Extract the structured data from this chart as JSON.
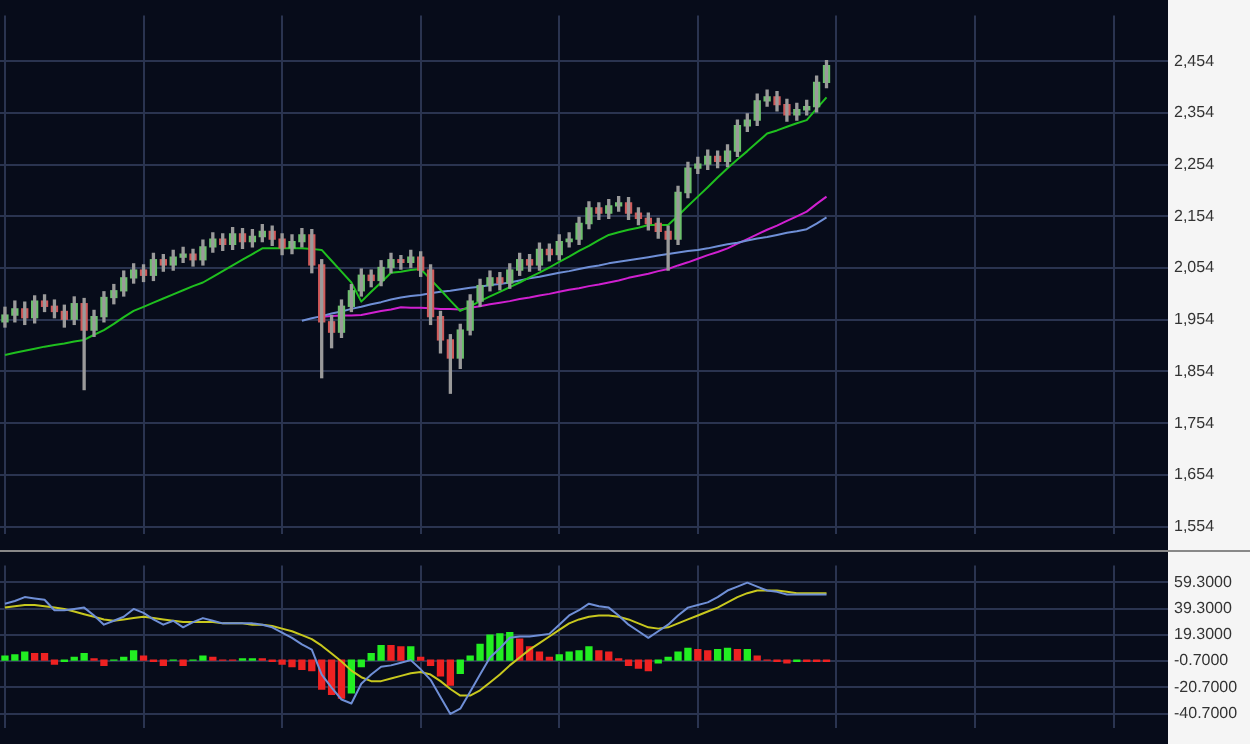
{
  "chart_data": [
    {
      "type": "candlestick",
      "categories": [
        null,
        null,
        null,
        null,
        null,
        null,
        null,
        null,
        null,
        null,
        null,
        null,
        null,
        null,
        null,
        null,
        null,
        null,
        null,
        null,
        null,
        null,
        null,
        null,
        null,
        null,
        null,
        null,
        null,
        null,
        null,
        null,
        null,
        null,
        null,
        null,
        null,
        null,
        null,
        null,
        null,
        null,
        null,
        null,
        null,
        null,
        null,
        null,
        null,
        null,
        null,
        null,
        null,
        null,
        null,
        null,
        null,
        null,
        null,
        null,
        null,
        null,
        null,
        null,
        null,
        null,
        null,
        null,
        null,
        null,
        null,
        null,
        null,
        null,
        null,
        null,
        null,
        null,
        null,
        null,
        null,
        null,
        null,
        null,
        null,
        null,
        null,
        null,
        null,
        null,
        null,
        null,
        null,
        null,
        null,
        null,
        null,
        null,
        null,
        null,
        null,
        null,
        null,
        null,
        null,
        null,
        null,
        null,
        null,
        null,
        null,
        null,
        null,
        null,
        null,
        null,
        null,
        null
      ],
      "ohlc": [
        [
          1950,
          1978,
          1940,
          1963
        ],
        [
          1963,
          1990,
          1950,
          1975
        ],
        [
          1975,
          1988,
          1945,
          1958
        ],
        [
          1958,
          2000,
          1948,
          1990
        ],
        [
          1990,
          2002,
          1970,
          1980
        ],
        [
          1980,
          1992,
          1958,
          1970
        ],
        [
          1970,
          1982,
          1940,
          1955
        ],
        [
          1955,
          1998,
          1945,
          1985
        ],
        [
          1985,
          1995,
          1819,
          1934
        ],
        [
          1934,
          1972,
          1922,
          1960
        ],
        [
          1960,
          2008,
          1950,
          1997
        ],
        [
          1997,
          2022,
          1985,
          2010
        ],
        [
          2010,
          2048,
          2000,
          2035
        ],
        [
          2035,
          2062,
          2025,
          2050
        ],
        [
          2050,
          2060,
          2028,
          2040
        ],
        [
          2040,
          2082,
          2030,
          2070
        ],
        [
          2070,
          2080,
          2048,
          2060
        ],
        [
          2060,
          2088,
          2050,
          2075
        ],
        [
          2075,
          2094,
          2065,
          2081
        ],
        [
          2081,
          2090,
          2058,
          2070
        ],
        [
          2070,
          2108,
          2060,
          2095
        ],
        [
          2095,
          2122,
          2085,
          2110
        ],
        [
          2110,
          2120,
          2088,
          2100
        ],
        [
          2100,
          2132,
          2090,
          2120
        ],
        [
          2120,
          2130,
          2092,
          2105
        ],
        [
          2105,
          2128,
          2095,
          2115
        ],
        [
          2115,
          2138,
          2105,
          2125
        ],
        [
          2125,
          2135,
          2098,
          2110
        ],
        [
          2110,
          2120,
          2080,
          2093
        ],
        [
          2093,
          2118,
          2082,
          2105
        ],
        [
          2105,
          2130,
          2095,
          2118
        ],
        [
          2118,
          2128,
          2045,
          2060
        ],
        [
          2060,
          2070,
          1842,
          1950
        ],
        [
          1950,
          1962,
          1900,
          1930
        ],
        [
          1930,
          1992,
          1920,
          1980
        ],
        [
          1980,
          2022,
          1970,
          2010
        ],
        [
          2010,
          2052,
          2000,
          2040
        ],
        [
          2040,
          2050,
          2018,
          2030
        ],
        [
          2030,
          2068,
          2020,
          2055
        ],
        [
          2055,
          2082,
          2045,
          2070
        ],
        [
          2070,
          2078,
          2052,
          2065
        ],
        [
          2065,
          2088,
          2055,
          2075
        ],
        [
          2075,
          2085,
          2038,
          2050
        ],
        [
          2050,
          2060,
          1945,
          1960
        ],
        [
          1960,
          1970,
          1890,
          1915
        ],
        [
          1915,
          1925,
          1812,
          1880
        ],
        [
          1880,
          1945,
          1860,
          1934
        ],
        [
          1934,
          2002,
          1925,
          1990
        ],
        [
          1990,
          2032,
          1980,
          2020
        ],
        [
          2020,
          2048,
          2010,
          2035
        ],
        [
          2035,
          2045,
          2012,
          2025
        ],
        [
          2025,
          2062,
          2015,
          2050
        ],
        [
          2050,
          2082,
          2040,
          2070
        ],
        [
          2070,
          2080,
          2048,
          2060
        ],
        [
          2060,
          2102,
          2050,
          2090
        ],
        [
          2090,
          2100,
          2068,
          2080
        ],
        [
          2080,
          2118,
          2070,
          2105
        ],
        [
          2105,
          2122,
          2095,
          2110
        ],
        [
          2110,
          2152,
          2100,
          2140
        ],
        [
          2140,
          2182,
          2130,
          2170
        ],
        [
          2170,
          2180,
          2148,
          2160
        ],
        [
          2160,
          2186,
          2150,
          2174
        ],
        [
          2174,
          2192,
          2164,
          2180
        ],
        [
          2180,
          2190,
          2148,
          2160
        ],
        [
          2160,
          2170,
          2138,
          2150
        ],
        [
          2150,
          2160,
          2128,
          2140
        ],
        [
          2140,
          2150,
          2112,
          2125
        ],
        [
          2125,
          2135,
          2050,
          2110
        ],
        [
          2110,
          2212,
          2100,
          2200
        ],
        [
          2200,
          2258,
          2190,
          2247
        ],
        [
          2247,
          2268,
          2237,
          2255
        ],
        [
          2255,
          2282,
          2245,
          2270
        ],
        [
          2270,
          2280,
          2248,
          2260
        ],
        [
          2260,
          2292,
          2250,
          2280
        ],
        [
          2280,
          2340,
          2270,
          2329
        ],
        [
          2329,
          2352,
          2318,
          2340
        ],
        [
          2340,
          2390,
          2330,
          2377
        ],
        [
          2377,
          2398,
          2367,
          2385
        ],
        [
          2385,
          2395,
          2358,
          2370
        ],
        [
          2370,
          2380,
          2338,
          2350
        ],
        [
          2350,
          2372,
          2340,
          2360
        ],
        [
          2360,
          2378,
          2350,
          2366
        ],
        [
          2366,
          2425,
          2356,
          2413
        ],
        [
          2413,
          2455,
          2403,
          2445
        ],
        null,
        null,
        null,
        null,
        null,
        null,
        null,
        null,
        null,
        null,
        null,
        null,
        null,
        null,
        null,
        null,
        null,
        null,
        null,
        null,
        null,
        null,
        null,
        null,
        null,
        null,
        null,
        null,
        null,
        null,
        null,
        null,
        null,
        null
      ],
      "series": [
        {
          "type": "line",
          "color": "#1fbf1f",
          "values": [
            1886,
            1890,
            1894,
            1898,
            1902,
            1905,
            1908,
            1912,
            1915,
            1925,
            1934,
            1946,
            1959,
            1971,
            1979,
            1987,
            1995,
            2003,
            2011,
            2019,
            2026,
            2037,
            2048,
            2059,
            2070,
            2081,
            2092,
            2092,
            2092,
            2092,
            2092,
            2091,
            2089,
            2068,
            2047,
            2026,
            1989,
            2008,
            2026,
            2045,
            2047,
            2050,
            2052,
            2032,
            2012,
            1991,
            1971,
            1980,
            1990,
            1999,
            2008,
            2017,
            2026,
            2036,
            2045,
            2055,
            2066,
            2076,
            2087,
            2097,
            2108,
            2118,
            2123,
            2128,
            2132,
            2137,
            2137,
            2137,
            2155,
            2174,
            2192,
            2210,
            2229,
            2247,
            2264,
            2280,
            2297,
            2314,
            2320,
            2327,
            2334,
            2340,
            2362,
            2384,
            null,
            null,
            null,
            null,
            null,
            null,
            null,
            null,
            null,
            null,
            null,
            null,
            null,
            null,
            null,
            null,
            null,
            null,
            null,
            null,
            null,
            null,
            null,
            null,
            null,
            null,
            null,
            null,
            null,
            null,
            null,
            null,
            null,
            null
          ]
        },
        {
          "type": "line",
          "color": "#6f8fd6",
          "values": [
            null,
            null,
            null,
            null,
            null,
            null,
            null,
            null,
            null,
            null,
            null,
            null,
            null,
            null,
            null,
            null,
            null,
            null,
            null,
            null,
            null,
            null,
            null,
            null,
            null,
            null,
            null,
            null,
            null,
            null,
            1952,
            1957,
            1961,
            1966,
            1970,
            1975,
            1979,
            1984,
            1988,
            1993,
            1997,
            2000,
            2002,
            2005,
            2008,
            2010,
            2013,
            2016,
            2018,
            2021,
            2023,
            2026,
            2030,
            2034,
            2037,
            2041,
            2045,
            2048,
            2052,
            2056,
            2059,
            2063,
            2066,
            2069,
            2072,
            2075,
            2078,
            2081,
            2084,
            2087,
            2089,
            2092,
            2096,
            2100,
            2103,
            2107,
            2111,
            2114,
            2118,
            2122,
            2125,
            2129,
            2140,
            2152,
            null,
            null,
            null,
            null,
            null,
            null,
            null,
            null,
            null,
            null,
            null,
            null,
            null,
            null,
            null,
            null,
            null,
            null,
            null,
            null,
            null,
            null,
            null,
            null,
            null,
            null,
            null,
            null,
            null,
            null,
            null,
            null,
            null,
            null
          ]
        },
        {
          "type": "line",
          "color": "#d020d0",
          "values": [
            null,
            null,
            null,
            null,
            null,
            null,
            null,
            null,
            null,
            null,
            null,
            null,
            null,
            null,
            null,
            null,
            null,
            null,
            null,
            null,
            null,
            null,
            null,
            null,
            null,
            null,
            null,
            null,
            null,
            null,
            null,
            null,
            1960,
            1961,
            1962,
            1962,
            1963,
            1967,
            1971,
            1974,
            1978,
            1977,
            1977,
            1976,
            1975,
            1975,
            1974,
            1977,
            1980,
            1984,
            1987,
            1990,
            1994,
            1997,
            2001,
            2004,
            2008,
            2012,
            2015,
            2019,
            2022,
            2026,
            2030,
            2035,
            2039,
            2043,
            2048,
            2052,
            2059,
            2065,
            2072,
            2079,
            2085,
            2092,
            2101,
            2110,
            2119,
            2128,
            2136,
            2145,
            2154,
            2163,
            2178,
            2192,
            null,
            null,
            null,
            null,
            null,
            null,
            null,
            null,
            null,
            null,
            null,
            null,
            null,
            null,
            null,
            null,
            null,
            null,
            null,
            null,
            null,
            null,
            null,
            null,
            null,
            null,
            null,
            null,
            null,
            null,
            null,
            null,
            null,
            null
          ]
        }
      ],
      "ylim": [
        1539,
        2542
      ],
      "yticks": [
        {
          "value": 1554,
          "label": "1,554"
        },
        {
          "value": 1654,
          "label": "1,654"
        },
        {
          "value": 1754,
          "label": "1,754"
        },
        {
          "value": 1854,
          "label": "1,854"
        },
        {
          "value": 1954,
          "label": "1,954"
        },
        {
          "value": 2054,
          "label": "2,054"
        },
        {
          "value": 2154,
          "label": "2,154"
        },
        {
          "value": 2254,
          "label": "2,254"
        },
        {
          "value": 2354,
          "label": "2,354"
        },
        {
          "value": 2454,
          "label": "2,454"
        }
      ],
      "tick_labels": "y",
      "grid": true
    },
    {
      "type": "bar",
      "categories": [
        null,
        null,
        null,
        null,
        null,
        null,
        null,
        null,
        null,
        null,
        null,
        null,
        null,
        null,
        null,
        null,
        null,
        null,
        null,
        null,
        null,
        null,
        null,
        null,
        null,
        null,
        null,
        null,
        null,
        null,
        null,
        null,
        null,
        null,
        null,
        null,
        null,
        null,
        null,
        null,
        null,
        null,
        null,
        null,
        null,
        null,
        null,
        null,
        null,
        null,
        null,
        null,
        null,
        null,
        null,
        null,
        null,
        null,
        null,
        null,
        null,
        null,
        null,
        null,
        null,
        null,
        null,
        null,
        null,
        null,
        null,
        null,
        null,
        null,
        null,
        null,
        null,
        null,
        null,
        null,
        null,
        null,
        null,
        null,
        null,
        null,
        null,
        null,
        null,
        null,
        null,
        null,
        null,
        null,
        null,
        null,
        null,
        null,
        null,
        null,
        null,
        null,
        null,
        null,
        null,
        null,
        null,
        null,
        null,
        null,
        null,
        null,
        null,
        null,
        null,
        null,
        null,
        null
      ],
      "series": [
        {
          "type": "bar",
          "colors": [
            "#22ee22",
            "#22ee22",
            "#22ee22",
            "#ee2222",
            "#ee2222",
            "#ee2222",
            "#22ee22",
            "#22ee22",
            "#22ee22",
            "#ee2222",
            "#ee2222",
            "#22ee22",
            "#22ee22",
            "#22ee22",
            "#ee2222",
            "#ee2222",
            "#ee2222",
            "#22ee22",
            "#ee2222",
            "#22ee22",
            "#22ee22",
            "#ee2222",
            "#ee2222",
            "#ee2222",
            "#22ee22",
            "#22ee22",
            "#ee2222",
            "#ee2222",
            "#ee2222",
            "#ee2222",
            "#ee2222",
            "#ee2222",
            "#ee2222",
            "#ee2222",
            "#ee2222",
            "#22ee22",
            "#22ee22",
            "#22ee22",
            "#22ee22",
            "#ee2222",
            "#ee2222",
            "#22ee22",
            "#ee2222",
            "#ee2222",
            "#ee2222",
            "#ee2222",
            "#22ee22",
            "#22ee22",
            "#22ee22",
            "#22ee22",
            "#22ee22",
            "#22ee22",
            "#ee2222",
            "#ee2222",
            "#ee2222",
            "#ee2222",
            "#22ee22",
            "#22ee22",
            "#22ee22",
            "#22ee22",
            "#ee2222",
            "#ee2222",
            "#ee2222",
            "#ee2222",
            "#ee2222",
            "#ee2222",
            "#22ee22",
            "#22ee22",
            "#22ee22",
            "#22ee22",
            "#ee2222",
            "#ee2222",
            "#22ee22",
            "#22ee22",
            "#ee2222",
            "#22ee22",
            "#ee2222",
            "#ee2222",
            "#ee2222",
            "#ee2222",
            "#22ee22",
            "#ee2222",
            "#ee2222",
            "#ee2222",
            null,
            null,
            null,
            null,
            null,
            null,
            null,
            null,
            null,
            null,
            null,
            null,
            null,
            null,
            null,
            null,
            null,
            null,
            null,
            null,
            null,
            null,
            null,
            null,
            null,
            null,
            null,
            null,
            null,
            null,
            null,
            null,
            null,
            null
          ],
          "values": [
            3,
            4,
            6,
            5,
            5,
            -3,
            -1,
            2,
            5,
            1,
            -4,
            0,
            2,
            7,
            3,
            -1,
            -4,
            0,
            -4,
            0,
            3,
            2,
            0,
            0,
            1,
            1,
            1,
            -1,
            -3,
            -5,
            -7,
            -8,
            -22,
            -26,
            -29,
            -25,
            -5,
            5,
            11,
            11,
            10,
            10,
            2,
            -4,
            -12,
            -19,
            -10,
            3,
            12,
            19,
            20,
            21,
            16,
            10,
            6,
            2,
            4,
            6,
            7,
            10,
            7,
            6,
            1,
            -4,
            -6,
            -8,
            -2,
            2,
            6,
            9,
            8,
            7,
            8,
            9,
            8,
            8,
            3,
            0,
            -1,
            -2,
            -1,
            -1,
            -1,
            -1,
            null,
            null,
            null,
            null,
            null,
            null,
            null,
            null,
            null,
            null,
            null,
            null,
            null,
            null,
            null,
            null,
            null,
            null,
            null,
            null,
            null,
            null,
            null,
            null,
            null,
            null,
            null,
            null,
            null,
            null,
            null,
            null,
            null,
            null
          ]
        },
        {
          "type": "line",
          "color": "#6f8fd6",
          "values": [
            43,
            45,
            48,
            47,
            46,
            38,
            38,
            39,
            40,
            34,
            27,
            30,
            33,
            39,
            36,
            31,
            27,
            30,
            25,
            29,
            32,
            30,
            28,
            28,
            28,
            28,
            27,
            25,
            21,
            17,
            12,
            8,
            -11,
            -21,
            -30,
            -33,
            -18,
            -11,
            -5,
            -4,
            -2,
            0,
            -7,
            -15,
            -28,
            -41,
            -37,
            -24,
            -11,
            2,
            9,
            17,
            18,
            18,
            19,
            20,
            27,
            34,
            38,
            43,
            41,
            40,
            34,
            27,
            22,
            17,
            22,
            27,
            34,
            40,
            42,
            44,
            48,
            53,
            56,
            59,
            56,
            53,
            52,
            50,
            50,
            50,
            50,
            50,
            null,
            null,
            null,
            null,
            null,
            null,
            null,
            null,
            null,
            null,
            null,
            null,
            null,
            null,
            null,
            null,
            null,
            null,
            null,
            null,
            null,
            null,
            null,
            null,
            null,
            null,
            null,
            null,
            null,
            null,
            null,
            null,
            null,
            null
          ]
        },
        {
          "type": "line",
          "color": "#c8c81e",
          "values": [
            40,
            41,
            42,
            42,
            41,
            40,
            39,
            37,
            35,
            33,
            31,
            30,
            31,
            32,
            33,
            32,
            31,
            30,
            29,
            29,
            29,
            29,
            28,
            28,
            28,
            27,
            27,
            26,
            24,
            22,
            19,
            16,
            11,
            5,
            -1,
            -8,
            -13,
            -16,
            -16,
            -14,
            -12,
            -10,
            -9,
            -11,
            -16,
            -22,
            -27,
            -27,
            -23,
            -17,
            -11,
            -4,
            2,
            8,
            13,
            18,
            23,
            28,
            31,
            33,
            34,
            34,
            33,
            31,
            28,
            25,
            24,
            25,
            28,
            31,
            34,
            37,
            40,
            44,
            48,
            51,
            53,
            53,
            53,
            52,
            51,
            51,
            51,
            51,
            null,
            null,
            null,
            null,
            null,
            null,
            null,
            null,
            null,
            null,
            null,
            null,
            null,
            null,
            null,
            null,
            null,
            null,
            null,
            null,
            null,
            null,
            null,
            null,
            null,
            null,
            null,
            null,
            null,
            null,
            null,
            null,
            null,
            null
          ]
        }
      ],
      "ylim": [
        -52,
        72
      ],
      "yticks": [
        {
          "value": -40.7,
          "label": "-40.7000"
        },
        {
          "value": -20.7,
          "label": "-20.7000"
        },
        {
          "value": -0.7,
          "label": "-0.7000"
        },
        {
          "value": 19.3,
          "label": "19.3000"
        },
        {
          "value": 39.3,
          "label": "39.3000"
        },
        {
          "value": 59.3,
          "label": "59.3000"
        }
      ],
      "tick_labels": "y",
      "grid": true
    }
  ]
}
